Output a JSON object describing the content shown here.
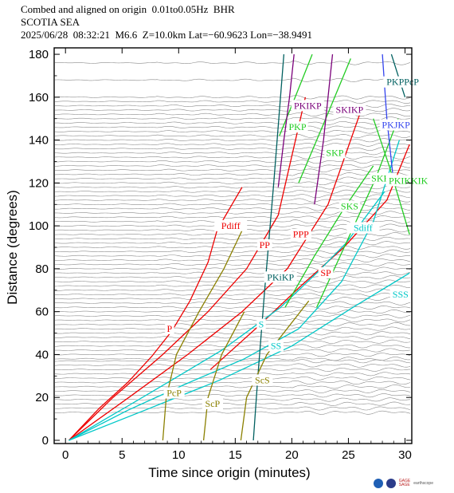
{
  "header": {
    "line1": "Combed and aligned on origin  0.01to0.05Hz  BHR",
    "line2": "SCOTIA SEA",
    "line3": "2025/06/28  08:32:21  M6.6  Z=10.0km Lat=−60.9623 Lon=−38.9491"
  },
  "logos": {
    "gage": "GAGE",
    "sage": "SAGE",
    "earthscope": "earthscope"
  },
  "chart_data": {
    "type": "line",
    "title": "",
    "xlabel": "Time since origin (minutes)",
    "ylabel": "Distance (degrees)",
    "xlim": [
      -1,
      30.6
    ],
    "ylim": [
      -1.5,
      183
    ],
    "xticks": [
      0,
      5,
      10,
      15,
      20,
      25,
      30
    ],
    "yticks": [
      0,
      20,
      40,
      60,
      80,
      100,
      120,
      140,
      160,
      180
    ],
    "grid": false,
    "phase_colors": {
      "P": "#ee0000",
      "S": "#00c8c8",
      "core_reflect": "#8b8000",
      "PKiKP": "#006060",
      "PKIKP": "#7a007a",
      "SKP": "#22cc22",
      "PKJKP": "#3344ee"
    },
    "series": [
      {
        "name": "P",
        "color": "#ee0000",
        "x": [
          0.3,
          3.0,
          5.5,
          7.6,
          9.4,
          11.0,
          12.6,
          13.4
        ],
        "y": [
          0,
          15,
          27,
          39,
          51,
          65,
          83,
          98
        ]
      },
      {
        "name": "Pdiff",
        "color": "#ee0000",
        "x": [
          13.4,
          14.5,
          15.6
        ],
        "y": [
          98,
          108,
          118
        ]
      },
      {
        "name": "PP",
        "color": "#ee0000",
        "x": [
          0.3,
          4.2,
          8.6,
          12.6,
          16.0,
          18.8,
          21.2
        ],
        "y": [
          0,
          20,
          40,
          60,
          80,
          105,
          160
        ]
      },
      {
        "name": "PPP",
        "color": "#ee0000",
        "x": [
          0.3,
          5.6,
          10.8,
          15.6,
          19.6,
          23.2,
          26.0
        ],
        "y": [
          0,
          20,
          40,
          60,
          80,
          110,
          152
        ]
      },
      {
        "name": "SP",
        "color": "#ee0000",
        "x": [
          12.8,
          17.0,
          20.8,
          24.6,
          28.4,
          30.4
        ],
        "y": [
          33,
          53,
          72,
          90,
          112,
          138
        ]
      },
      {
        "name": "S",
        "color": "#00c8c8",
        "x": [
          0.3,
          5.5,
          10.0,
          13.8,
          16.4,
          19.0,
          22.2,
          24.8
        ],
        "y": [
          0,
          16,
          30,
          42,
          52,
          62,
          78,
          92
        ]
      },
      {
        "name": "Sdiff",
        "color": "#00c8c8",
        "x": [
          24.8,
          26.5,
          28.2
        ],
        "y": [
          92,
          104,
          116
        ]
      },
      {
        "name": "SS",
        "color": "#00c8c8",
        "x": [
          0.3,
          5.5,
          10.5,
          15.8,
          20.6,
          24.4,
          27.2,
          29.5
        ],
        "y": [
          0,
          14,
          26,
          38,
          52,
          74,
          102,
          140
        ]
      },
      {
        "name": "SSS",
        "color": "#00c8c8",
        "x": [
          0.3,
          7.0,
          13.6,
          20.0,
          25.4,
          30.4
        ],
        "y": [
          0,
          14,
          28,
          44,
          62,
          78
        ]
      },
      {
        "name": "SKS",
        "color": "#22cc22",
        "x": [
          19.4,
          22.0,
          24.6,
          27.2
        ],
        "y": [
          62,
          86,
          108,
          128
        ]
      },
      {
        "name": "SKKS",
        "color": "#22cc22",
        "x": [
          22.2,
          24.8,
          27.4,
          29.4
        ],
        "y": [
          62,
          92,
          122,
          150
        ]
      },
      {
        "name": "PKIKKIK",
        "color": "#22cc22",
        "x": [
          27.2,
          28.6,
          30.4
        ],
        "y": [
          150,
          128,
          96
        ]
      },
      {
        "name": "SKP",
        "color": "#22cc22",
        "x": [
          20.6,
          23.0,
          25.2
        ],
        "y": [
          120,
          150,
          178
        ]
      },
      {
        "name": "PKP",
        "color": "#22cc22",
        "x": [
          18.9,
          20.3,
          21.8
        ],
        "y": [
          142,
          160,
          180
        ]
      },
      {
        "name": "PKIKP",
        "color": "#7a007a",
        "x": [
          18.8,
          19.3,
          19.8,
          20.2
        ],
        "y": [
          118,
          140,
          160,
          180
        ]
      },
      {
        "name": "SKIKP",
        "color": "#7a007a",
        "x": [
          22.0,
          22.8,
          23.6
        ],
        "y": [
          110,
          140,
          180
        ]
      },
      {
        "name": "PKiKP",
        "color": "#006060",
        "x": [
          16.6,
          17.0,
          17.6,
          18.4,
          19.3
        ],
        "y": [
          0,
          30,
          70,
          120,
          180
        ]
      },
      {
        "name": "PKJKP",
        "color": "#3344ee",
        "x": [
          28.0,
          28.4,
          29.0
        ],
        "y": [
          180,
          150,
          120
        ]
      },
      {
        "name": "PKPPcP",
        "color": "#006060",
        "x": [
          28.8,
          29.4,
          30.0
        ],
        "y": [
          180,
          170,
          160
        ]
      },
      {
        "name": "PcP",
        "color": "#8b8000",
        "x": [
          8.6,
          8.9,
          9.8,
          11.8,
          14.0,
          15.8
        ],
        "y": [
          0,
          20,
          40,
          60,
          80,
          100
        ]
      },
      {
        "name": "ScP",
        "color": "#8b8000",
        "x": [
          12.2,
          12.6,
          13.8,
          15.8
        ],
        "y": [
          0,
          20,
          40,
          60
        ]
      },
      {
        "name": "ScS",
        "color": "#8b8000",
        "x": [
          15.5,
          16.0,
          17.8,
          21.5
        ],
        "y": [
          0,
          20,
          40,
          65
        ]
      }
    ],
    "phase_labels": [
      {
        "text": "P",
        "x": 9.2,
        "y": 51,
        "color": "#ee0000"
      },
      {
        "text": "Pdiff",
        "x": 14.6,
        "y": 99,
        "color": "#ee0000"
      },
      {
        "text": "PP",
        "x": 17.6,
        "y": 90,
        "color": "#ee0000"
      },
      {
        "text": "PPP",
        "x": 20.8,
        "y": 95,
        "color": "#ee0000"
      },
      {
        "text": "SP",
        "x": 23.0,
        "y": 77,
        "color": "#ee0000"
      },
      {
        "text": "PKiKP",
        "x": 19.0,
        "y": 75,
        "color": "#006060"
      },
      {
        "text": "S",
        "x": 17.3,
        "y": 53,
        "color": "#00c8c8"
      },
      {
        "text": "SS",
        "x": 18.6,
        "y": 43,
        "color": "#00c8c8"
      },
      {
        "text": "SSS",
        "x": 29.6,
        "y": 67,
        "color": "#00c8c8"
      },
      {
        "text": "Sdiff",
        "x": 26.3,
        "y": 98,
        "color": "#00c8c8"
      },
      {
        "text": "SKS",
        "x": 25.1,
        "y": 108,
        "color": "#22cc22"
      },
      {
        "text": "SKKS",
        "x": 28.1,
        "y": 121,
        "color": "#22cc22"
      },
      {
        "text": "PKIKKIK",
        "x": 30.3,
        "y": 120,
        "color": "#22cc22"
      },
      {
        "text": "SKP",
        "x": 23.8,
        "y": 133,
        "color": "#22cc22"
      },
      {
        "text": "PKP",
        "x": 20.5,
        "y": 145,
        "color": "#22cc22"
      },
      {
        "text": "PKIKP",
        "x": 21.4,
        "y": 155,
        "color": "#7a007a"
      },
      {
        "text": "SKIKP",
        "x": 25.1,
        "y": 153,
        "color": "#7a007a"
      },
      {
        "text": "PKJKP",
        "x": 29.2,
        "y": 146,
        "color": "#3344ee"
      },
      {
        "text": "PKPPcP",
        "x": 29.8,
        "y": 166,
        "color": "#006060"
      },
      {
        "text": "PcP",
        "x": 9.6,
        "y": 21,
        "color": "#8b8000"
      },
      {
        "text": "ScP",
        "x": 13.0,
        "y": 16,
        "color": "#8b8000"
      },
      {
        "text": "ScS",
        "x": 17.4,
        "y": 27,
        "color": "#8b8000"
      }
    ],
    "station_distances": [
      13,
      15,
      17,
      19,
      21,
      23,
      25,
      27,
      29,
      31,
      33,
      35,
      37,
      38,
      40,
      42,
      44,
      46,
      48,
      50,
      52,
      54,
      56,
      58,
      60,
      62,
      64,
      66,
      68,
      70,
      72,
      74,
      76,
      78,
      80,
      82,
      84,
      86,
      88,
      90,
      92,
      94,
      96,
      98,
      100,
      102,
      104,
      106,
      108,
      110,
      112,
      114,
      116,
      118,
      120,
      122,
      124,
      126,
      128,
      130,
      132,
      134,
      136,
      138,
      140,
      142,
      144,
      146,
      148,
      150,
      152,
      154,
      156,
      158,
      160,
      168,
      176
    ]
  }
}
